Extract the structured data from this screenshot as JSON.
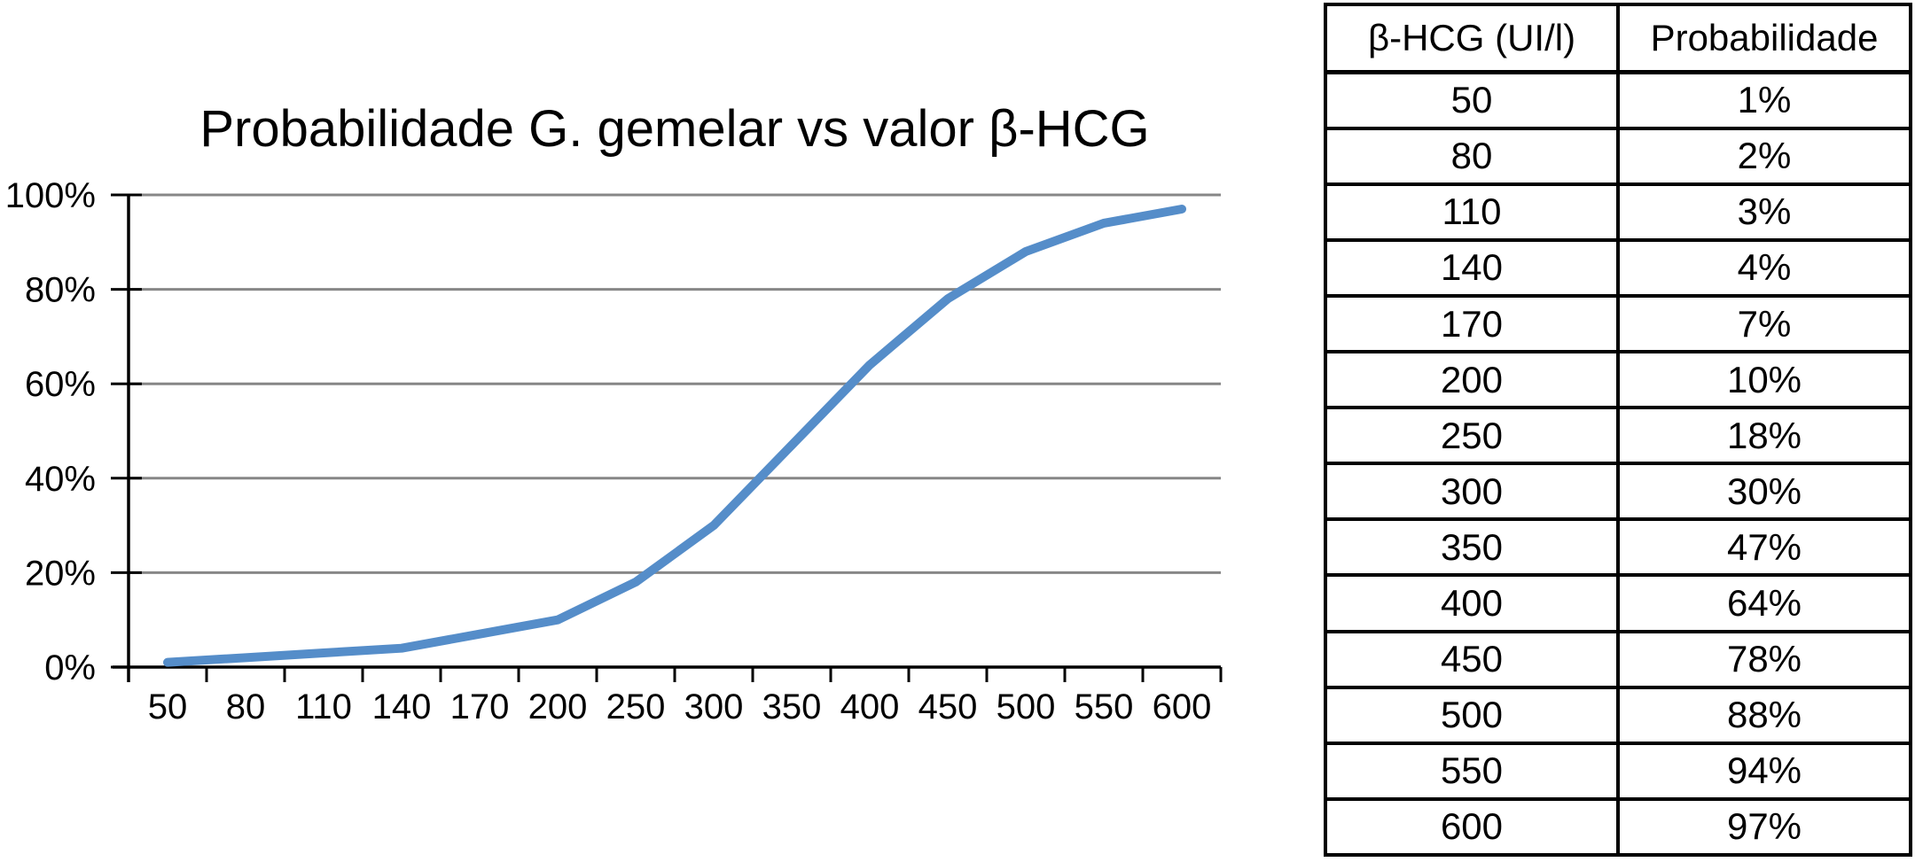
{
  "page": {
    "title": "Probabilidade G. gemelar vs valor β-HCG"
  },
  "chart_data": [
    {
      "type": "line",
      "title": "Probabilidade G. gemelar vs valor β-HCG",
      "categories": [
        "50",
        "80",
        "110",
        "140",
        "170",
        "200",
        "250",
        "300",
        "350",
        "400",
        "450",
        "500",
        "550",
        "600"
      ],
      "series": [
        {
          "name": "Probabilidade G. gemelar",
          "values": [
            1,
            2,
            3,
            4,
            7,
            10,
            18,
            30,
            47,
            64,
            78,
            88,
            94,
            97
          ]
        }
      ],
      "xlabel": "",
      "ylabel": "",
      "ylim": [
        0,
        100
      ],
      "y_ticks": [
        0,
        20,
        40,
        60,
        80,
        100
      ],
      "y_tick_labels": [
        "0%",
        "20%",
        "40%",
        "60%",
        "80%",
        "100%"
      ],
      "grid": true,
      "legend": "none",
      "line_color": "#558DC9",
      "gridline_color": "#878787",
      "axis_color": "#000000"
    },
    {
      "type": "table",
      "columns": [
        "β-HCG (UI/l)",
        "Probabilidade"
      ],
      "rows": [
        [
          "50",
          "1%"
        ],
        [
          "80",
          "2%"
        ],
        [
          "110",
          "3%"
        ],
        [
          "140",
          "4%"
        ],
        [
          "170",
          "7%"
        ],
        [
          "200",
          "10%"
        ],
        [
          "250",
          "18%"
        ],
        [
          "300",
          "30%"
        ],
        [
          "350",
          "47%"
        ],
        [
          "400",
          "64%"
        ],
        [
          "450",
          "78%"
        ],
        [
          "500",
          "88%"
        ],
        [
          "550",
          "94%"
        ],
        [
          "600",
          "97%"
        ]
      ],
      "border_color": "#000000"
    }
  ]
}
